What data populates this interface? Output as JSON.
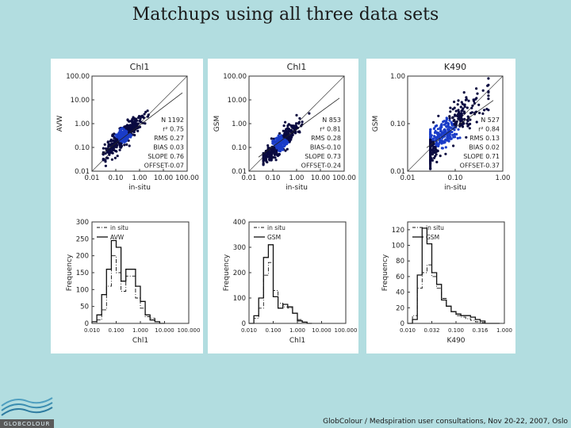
{
  "slide_title": "Matchups using all three data sets",
  "footer": "GlobColour / Medspiration user consultations, Nov 20-22, 2007, Oslo",
  "logo_text": "GLOBCOLOUR",
  "colors": {
    "background": "#b2dde0",
    "scatter_core": "#1a3cc8",
    "scatter_edge": "#0a0a40"
  },
  "chart_data": [
    {
      "type": "scatter",
      "title": "Chl1",
      "xlabel": "in-situ",
      "ylabel": "AVW",
      "scale": "log",
      "xlim": [
        0.01,
        100
      ],
      "ylim": [
        0.01,
        100
      ],
      "x_ticks": [
        "0.01",
        "0.10",
        "1.00",
        "10.00",
        "100.00"
      ],
      "y_ticks": [
        "0.01",
        "0.10",
        "1.00",
        "10.00",
        "100.00"
      ],
      "stats": [
        "N 1192",
        "r² 0.75",
        "RMS 0.27",
        "BIAS 0.03",
        "SLOPE 0.76",
        "OFFSET-0.07"
      ],
      "fit": {
        "slope": 0.76,
        "offset": -0.07
      },
      "cloud": {
        "center": [
          0.2,
          0.3
        ],
        "n": 1192,
        "xspan": [
          0.03,
          8.0
        ]
      }
    },
    {
      "type": "scatter",
      "title": "Chl1",
      "xlabel": "in-situ",
      "ylabel": "GSM",
      "scale": "log",
      "xlim": [
        0.01,
        100
      ],
      "ylim": [
        0.01,
        100
      ],
      "x_ticks": [
        "0.01",
        "0.10",
        "1.00",
        "10.00",
        "100.00"
      ],
      "y_ticks": [
        "0.01",
        "0.10",
        "1.00",
        "10.00",
        "100.00"
      ],
      "stats": [
        "N 853",
        "r² 0.81",
        "RMS 0.28",
        "BIAS-0.10",
        "SLOPE 0.73",
        "OFFSET-0.24"
      ],
      "fit": {
        "slope": 0.73,
        "offset": -0.24
      },
      "cloud": {
        "center": [
          0.2,
          0.15
        ],
        "n": 853,
        "xspan": [
          0.04,
          8.0
        ]
      }
    },
    {
      "type": "scatter",
      "title": "K490",
      "xlabel": "in-situ",
      "ylabel": "GSM",
      "scale": "log",
      "xlim": [
        0.01,
        1.0
      ],
      "ylim": [
        0.01,
        1.0
      ],
      "x_ticks": [
        "0.01",
        "0.10",
        "1.00"
      ],
      "y_ticks": [
        "0.01",
        "0.10",
        "1.00"
      ],
      "stats": [
        "N 527",
        "r² 0.84",
        "RMS 0.13",
        "BIAS 0.02",
        "SLOPE 0.71",
        "OFFSET-0.37"
      ],
      "fit": {
        "slope": 0.71,
        "offset": -0.37
      },
      "cloud": {
        "center": [
          0.06,
          0.06
        ],
        "n": 527,
        "xspan": [
          0.03,
          0.5
        ]
      }
    },
    {
      "type": "histogram",
      "xlabel": "Chl1",
      "ylabel": "Frequency",
      "x_ticks": [
        "0.010",
        "0.100",
        "1.000",
        "10.000",
        "100.000"
      ],
      "x_log_range": [
        0.01,
        100
      ],
      "ylim": [
        0,
        300
      ],
      "y_ticks": [
        "0",
        "50",
        "100",
        "150",
        "200",
        "250",
        "300"
      ],
      "legend": [
        "in situ",
        "AVW"
      ],
      "bin_edges_log10": [
        -2.0,
        -1.8,
        -1.6,
        -1.4,
        -1.2,
        -1.0,
        -0.8,
        -0.6,
        -0.4,
        -0.2,
        0.0,
        0.2,
        0.4,
        0.6,
        0.8,
        1.0
      ],
      "series": [
        {
          "name": "in situ",
          "style": "dash-dot",
          "values": [
            0,
            10,
            40,
            110,
            200,
            150,
            95,
            140,
            140,
            75,
            45,
            20,
            15,
            5,
            0
          ]
        },
        {
          "name": "AVW",
          "style": "solid",
          "values": [
            5,
            25,
            85,
            160,
            245,
            225,
            125,
            160,
            160,
            110,
            65,
            25,
            10,
            5,
            0
          ]
        }
      ]
    },
    {
      "type": "histogram",
      "xlabel": "Chl1",
      "ylabel": "Frequency",
      "x_ticks": [
        "0.010",
        "0.100",
        "1.000",
        "10.000",
        "100.000"
      ],
      "x_log_range": [
        0.01,
        100
      ],
      "ylim": [
        0,
        400
      ],
      "y_ticks": [
        "0",
        "100",
        "200",
        "300",
        "400"
      ],
      "legend": [
        "in situ",
        "GSM"
      ],
      "bin_edges_log10": [
        -2.0,
        -1.8,
        -1.6,
        -1.4,
        -1.2,
        -1.0,
        -0.8,
        -0.6,
        -0.4,
        -0.2,
        0.0,
        0.2,
        0.4,
        0.6
      ],
      "series": [
        {
          "name": "in situ",
          "style": "dash-dot",
          "values": [
            0,
            20,
            60,
            190,
            240,
            130,
            80,
            65,
            60,
            40,
            15,
            5,
            0
          ]
        },
        {
          "name": "GSM",
          "style": "solid",
          "values": [
            0,
            30,
            100,
            260,
            310,
            105,
            60,
            75,
            65,
            40,
            10,
            5,
            0
          ]
        }
      ]
    },
    {
      "type": "histogram",
      "xlabel": "K490",
      "ylabel": "Frequency",
      "x_ticks": [
        "0.010",
        "0.032",
        "0.100",
        "0.316",
        "1.000"
      ],
      "x_log_range": [
        0.01,
        1.0
      ],
      "ylim": [
        0,
        130
      ],
      "y_ticks": [
        "0",
        "20",
        "40",
        "60",
        "80",
        "100",
        "120"
      ],
      "legend": [
        "in situ",
        "GSM"
      ],
      "bin_edges_log10": [
        -2.0,
        -1.9,
        -1.8,
        -1.7,
        -1.6,
        -1.5,
        -1.4,
        -1.3,
        -1.2,
        -1.1,
        -1.0,
        -0.9,
        -0.8,
        -0.7,
        -0.6,
        -0.5,
        -0.4,
        -0.3,
        -0.2,
        -0.1
      ],
      "series": [
        {
          "name": "in situ",
          "style": "dash-dot",
          "values": [
            0,
            10,
            45,
            65,
            75,
            60,
            45,
            32,
            22,
            15,
            10,
            8,
            6,
            4,
            2,
            1,
            0,
            0,
            0
          ]
        },
        {
          "name": "GSM",
          "style": "solid",
          "values": [
            0,
            5,
            62,
            122,
            102,
            65,
            50,
            30,
            22,
            15,
            12,
            10,
            10,
            8,
            5,
            3,
            0,
            0,
            0
          ]
        }
      ]
    }
  ]
}
